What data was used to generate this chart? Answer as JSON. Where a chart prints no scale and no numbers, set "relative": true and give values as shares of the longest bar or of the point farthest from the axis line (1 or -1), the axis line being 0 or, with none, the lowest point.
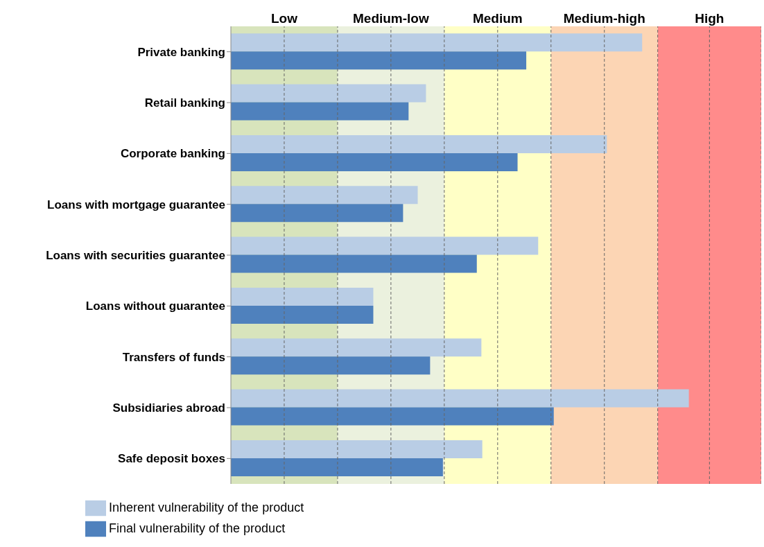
{
  "chart_data": {
    "type": "bar",
    "orientation": "horizontal",
    "relative": true,
    "categories": [
      "Private banking",
      "Retail banking",
      "Corporate banking",
      "Loans with mortgage guarantee",
      "Loans with securities guarantee",
      "Loans without guarantee",
      "Transfers of funds",
      "Subsidiaries abroad",
      "Safe deposit boxes"
    ],
    "series": [
      {
        "name": "Inherent vulnerability of the product",
        "color": "#b9cde5",
        "values": [
          0.898,
          0.426,
          0.821,
          0.408,
          0.671,
          0.311,
          0.547,
          1,
          0.549
        ]
      },
      {
        "name": "Final vulnerability of the product",
        "color": "#4f81bd",
        "values": [
          0.645,
          0.388,
          0.626,
          0.376,
          0.537,
          0.311,
          0.435,
          0.705,
          0.463
        ]
      }
    ],
    "bands": [
      {
        "axis": "x",
        "from": 0,
        "to": 0.233,
        "label": "Low",
        "color": "#d8e4bc"
      },
      {
        "axis": "x",
        "from": 0.233,
        "to": 0.466,
        "label": "Medium-low",
        "color": "#ebf1de"
      },
      {
        "axis": "x",
        "from": 0.466,
        "to": 0.699,
        "label": "Medium",
        "color": "#ffffc6"
      },
      {
        "axis": "x",
        "from": 0.699,
        "to": 0.932,
        "label": "Medium-high",
        "color": "#fcd5b4"
      },
      {
        "axis": "x",
        "from": 0.932,
        "to": 1.158,
        "label": "High",
        "color": "#ff8b8b"
      }
    ],
    "grid": "x",
    "legend": "bottom left"
  }
}
